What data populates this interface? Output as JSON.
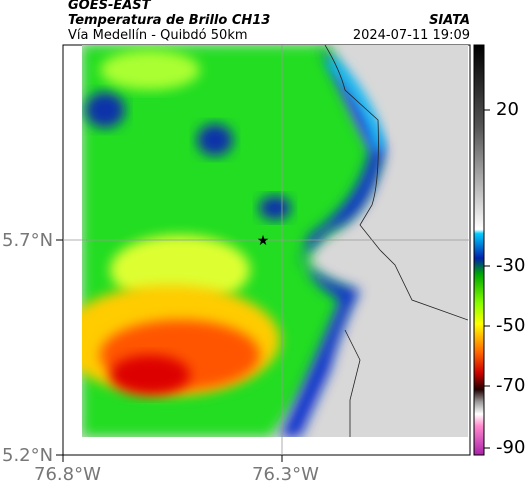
{
  "header": {
    "source": "GOES-EAST",
    "title": "Temperatura de Brillo CH13",
    "subtitle": "Vía Medellín - Quibdó 50km",
    "org": "SIATA",
    "datetime": "2024-07-11 19:09"
  },
  "map": {
    "x_labels": [
      "76.8°W",
      "76.3°W"
    ],
    "y_labels": [
      "5.7°N",
      "5.2°N"
    ]
  },
  "colorbar": {
    "labels": [
      "20",
      "-30",
      "-50",
      "-70",
      "-90"
    ]
  }
}
